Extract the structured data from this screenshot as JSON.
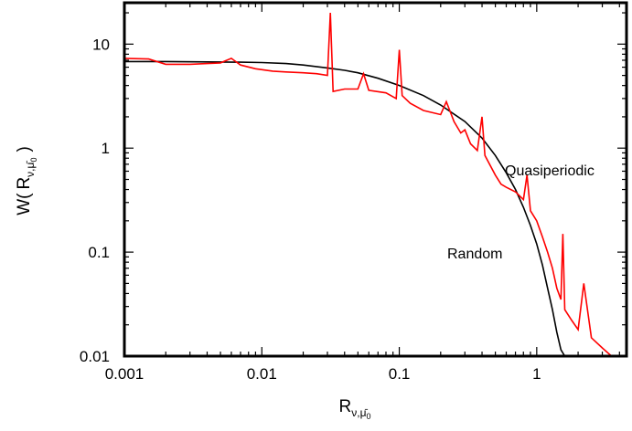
{
  "chart_data": {
    "type": "line",
    "title": "",
    "xlabel": {
      "base": "R",
      "subscript_nu": "ν",
      "subscript_sep": ",",
      "subscript_mu": "μ̄",
      "subscript_mu_index": "0"
    },
    "ylabel": {
      "prefix": "W(",
      "base": "R",
      "subscript_nu": "ν",
      "subscript_sep": ",",
      "subscript_mu": "μ̄",
      "subscript_mu_index": "0",
      "suffix": ")"
    },
    "x_scale": "log",
    "y_scale": "log",
    "xlim": [
      0.001,
      4.5
    ],
    "ylim": [
      0.01,
      25
    ],
    "x_ticks": [
      {
        "value": 0.001,
        "label": "0.001"
      },
      {
        "value": 0.01,
        "label": "0.01"
      },
      {
        "value": 0.1,
        "label": "0.1"
      },
      {
        "value": 1,
        "label": "1"
      }
    ],
    "y_ticks": [
      {
        "value": 0.01,
        "label": "0.01"
      },
      {
        "value": 0.1,
        "label": "0.1"
      },
      {
        "value": 1,
        "label": "1"
      },
      {
        "value": 10,
        "label": "10"
      }
    ],
    "grid": false,
    "legend": "none",
    "annotations": [
      {
        "text": "Quasiperiodic",
        "x": 0.7,
        "y": 0.75
      },
      {
        "text": "Random",
        "x": 0.2,
        "y": 0.075
      }
    ],
    "series": [
      {
        "color": "#000000",
        "points": [
          [
            0.001,
            6.8
          ],
          [
            0.002,
            6.8
          ],
          [
            0.004,
            6.75
          ],
          [
            0.007,
            6.7
          ],
          [
            0.01,
            6.65
          ],
          [
            0.015,
            6.5
          ],
          [
            0.02,
            6.3
          ],
          [
            0.03,
            5.9
          ],
          [
            0.04,
            5.6
          ],
          [
            0.05,
            5.3
          ],
          [
            0.07,
            4.7
          ],
          [
            0.1,
            4.0
          ],
          [
            0.15,
            3.2
          ],
          [
            0.2,
            2.6
          ],
          [
            0.3,
            1.8
          ],
          [
            0.4,
            1.25
          ],
          [
            0.5,
            0.85
          ],
          [
            0.6,
            0.58
          ],
          [
            0.7,
            0.4
          ],
          [
            0.8,
            0.27
          ],
          [
            0.9,
            0.18
          ],
          [
            1.0,
            0.12
          ],
          [
            1.1,
            0.075
          ],
          [
            1.2,
            0.045
          ],
          [
            1.3,
            0.028
          ],
          [
            1.4,
            0.017
          ],
          [
            1.5,
            0.0115
          ],
          [
            1.6,
            0.01
          ]
        ]
      },
      {
        "color": "#ff0000",
        "points": [
          [
            0.001,
            7.3
          ],
          [
            0.0015,
            7.2
          ],
          [
            0.002,
            6.4
          ],
          [
            0.003,
            6.4
          ],
          [
            0.004,
            6.5
          ],
          [
            0.005,
            6.6
          ],
          [
            0.006,
            7.3
          ],
          [
            0.007,
            6.3
          ],
          [
            0.009,
            5.8
          ],
          [
            0.012,
            5.5
          ],
          [
            0.015,
            5.4
          ],
          [
            0.02,
            5.3
          ],
          [
            0.025,
            5.2
          ],
          [
            0.03,
            5.0
          ],
          [
            0.0315,
            20.0
          ],
          [
            0.033,
            3.5
          ],
          [
            0.04,
            3.7
          ],
          [
            0.05,
            3.7
          ],
          [
            0.055,
            5.2
          ],
          [
            0.06,
            3.6
          ],
          [
            0.08,
            3.4
          ],
          [
            0.095,
            3.0
          ],
          [
            0.1,
            8.8
          ],
          [
            0.105,
            3.2
          ],
          [
            0.12,
            2.7
          ],
          [
            0.15,
            2.3
          ],
          [
            0.2,
            2.1
          ],
          [
            0.22,
            2.8
          ],
          [
            0.25,
            1.8
          ],
          [
            0.28,
            1.4
          ],
          [
            0.3,
            1.5
          ],
          [
            0.33,
            1.1
          ],
          [
            0.37,
            0.95
          ],
          [
            0.4,
            2.0
          ],
          [
            0.42,
            0.85
          ],
          [
            0.5,
            0.55
          ],
          [
            0.55,
            0.45
          ],
          [
            0.6,
            0.42
          ],
          [
            0.7,
            0.38
          ],
          [
            0.8,
            0.32
          ],
          [
            0.85,
            0.55
          ],
          [
            0.9,
            0.25
          ],
          [
            1.0,
            0.2
          ],
          [
            1.1,
            0.14
          ],
          [
            1.2,
            0.1
          ],
          [
            1.3,
            0.07
          ],
          [
            1.4,
            0.045
          ],
          [
            1.5,
            0.035
          ],
          [
            1.55,
            0.15
          ],
          [
            1.6,
            0.028
          ],
          [
            1.8,
            0.022
          ],
          [
            2.0,
            0.018
          ],
          [
            2.2,
            0.05
          ],
          [
            2.5,
            0.015
          ],
          [
            3.0,
            0.012
          ],
          [
            3.5,
            0.01
          ]
        ]
      }
    ]
  }
}
